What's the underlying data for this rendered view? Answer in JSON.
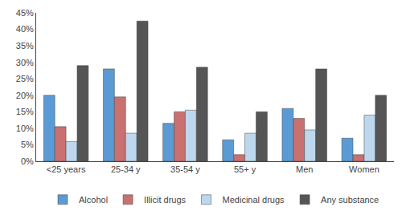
{
  "chart_data": {
    "type": "bar",
    "categories": [
      "<25 years",
      "25-34 y",
      "35-54 y",
      "55+ y",
      "Men",
      "Women"
    ],
    "series": [
      {
        "name": "Alcohol",
        "color": "#5B9BD5",
        "values": [
          20.0,
          28.0,
          11.5,
          6.5,
          16.0,
          7.0
        ]
      },
      {
        "name": "Illicit drugs",
        "color": "#C97070",
        "values": [
          10.5,
          19.5,
          15.0,
          2.0,
          13.0,
          2.0
        ]
      },
      {
        "name": "Medicinal drugs",
        "color": "#BDD7EE",
        "values": [
          6.0,
          8.5,
          15.5,
          8.5,
          9.5,
          14.0
        ]
      },
      {
        "name": "Any substance",
        "color": "#555555",
        "values": [
          29.0,
          42.5,
          28.5,
          15.0,
          28.0,
          20.0
        ]
      }
    ],
    "ylim": [
      0,
      45
    ],
    "yticks": [
      {
        "value": 0,
        "label": "0%"
      },
      {
        "value": 5,
        "label": "5%"
      },
      {
        "value": 10,
        "label": "10%"
      },
      {
        "value": 15,
        "label": "15%"
      },
      {
        "value": 20,
        "label": "20%"
      },
      {
        "value": 25,
        "label": "25%"
      },
      {
        "value": 30,
        "label": "30%"
      },
      {
        "value": 35,
        "label": "35%"
      },
      {
        "value": 40,
        "label": "40%"
      },
      {
        "value": 45,
        "label": "45%"
      }
    ],
    "grid": false,
    "legend": "bottom"
  }
}
